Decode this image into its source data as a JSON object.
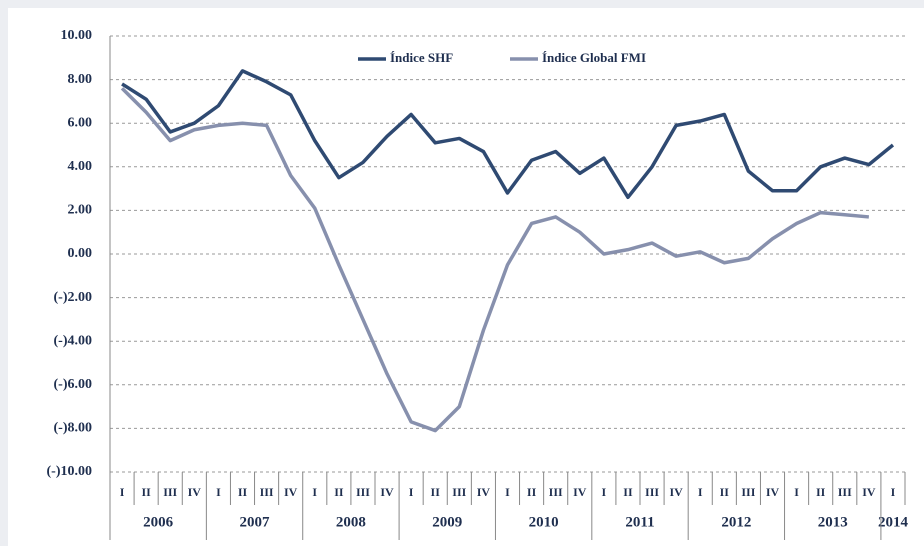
{
  "chart_data": {
    "type": "line",
    "categories": [
      "I",
      "II",
      "III",
      "IV",
      "I",
      "II",
      "III",
      "IV",
      "I",
      "II",
      "III",
      "IV",
      "I",
      "II",
      "III",
      "IV",
      "I",
      "II",
      "III",
      "IV",
      "I",
      "II",
      "III",
      "IV",
      "I",
      "II",
      "III",
      "IV",
      "I",
      "II",
      "III",
      "IV",
      "I"
    ],
    "years": [
      "2006",
      "2007",
      "2008",
      "2009",
      "2010",
      "2011",
      "2012",
      "2013",
      "2014"
    ],
    "series": [
      {
        "name": "Índice SHF",
        "color": "#2f4a72",
        "values": [
          7.8,
          7.1,
          5.6,
          6.0,
          6.8,
          8.4,
          7.9,
          7.3,
          5.2,
          3.5,
          4.2,
          5.4,
          6.4,
          5.1,
          5.3,
          4.7,
          2.8,
          4.3,
          4.7,
          3.7,
          4.4,
          2.6,
          4.0,
          5.9,
          6.1,
          6.4,
          3.8,
          2.9,
          2.9,
          4.0,
          4.4,
          4.1,
          5.0
        ]
      },
      {
        "name": "Índice Global FMI",
        "color": "#8790ad",
        "values": [
          7.6,
          6.5,
          5.2,
          5.7,
          5.9,
          6.0,
          5.9,
          3.6,
          2.1,
          -0.5,
          -3.0,
          -5.5,
          -7.7,
          -8.1,
          -7.0,
          -3.5,
          -0.5,
          1.4,
          1.7,
          1.0,
          0.0,
          0.2,
          0.5,
          -0.1,
          0.1,
          -0.4,
          -0.2,
          0.7,
          1.4,
          1.9,
          1.8,
          1.7,
          null
        ]
      }
    ],
    "ylim": [
      -10,
      10
    ],
    "yticks": [
      {
        "value": 10,
        "label": "10.00"
      },
      {
        "value": 8,
        "label": "8.00"
      },
      {
        "value": 6,
        "label": "6.00"
      },
      {
        "value": 4,
        "label": "4.00"
      },
      {
        "value": 2,
        "label": "2.00"
      },
      {
        "value": 0,
        "label": "0.00"
      },
      {
        "value": -2,
        "label": "(-)2.00"
      },
      {
        "value": -4,
        "label": "(-)4.00"
      },
      {
        "value": -6,
        "label": "(-)6.00"
      },
      {
        "value": -8,
        "label": "(-)8.00"
      },
      {
        "value": -10,
        "label": "(-)10.00"
      }
    ],
    "grid": true
  }
}
